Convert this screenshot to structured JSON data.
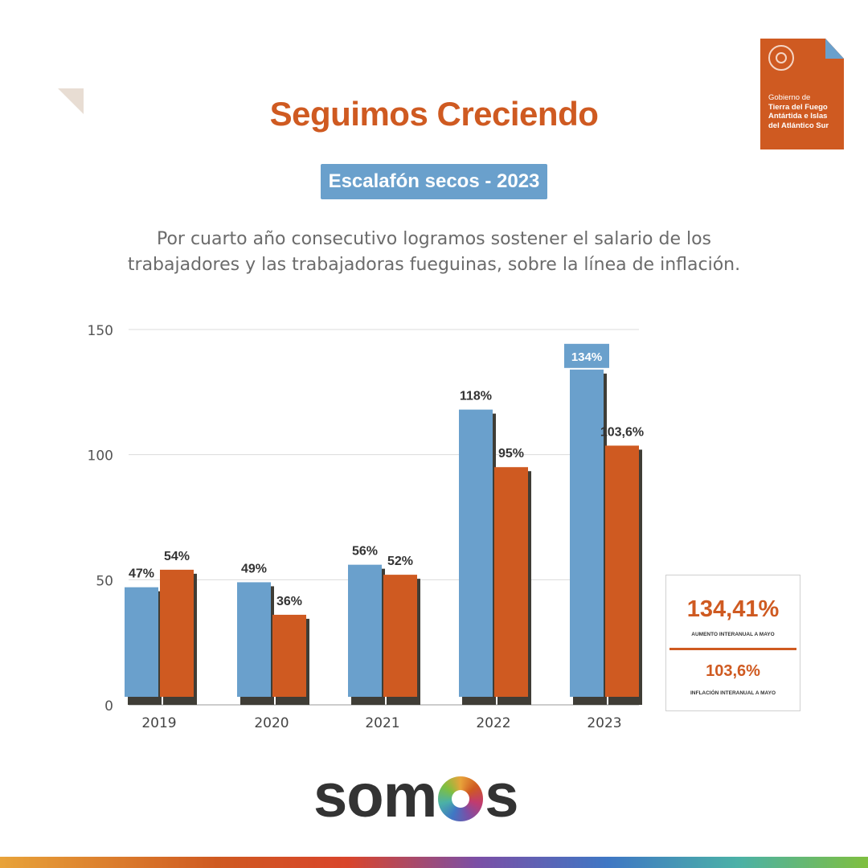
{
  "logo": {
    "line1": "Gobierno de",
    "line2": "Tierra del Fuego",
    "line3": "Antártida e Islas",
    "line4": "del Atlántico Sur"
  },
  "title": "Seguimos Creciendo",
  "subtitle": "Escalafón secos - 2023",
  "description": {
    "line1": "Por cuarto año consecutivo logramos sostener el salario de los",
    "line2": "trabajadores y las trabajadoras fueguinas, sobre la línea de inflación."
  },
  "chart_data": {
    "type": "bar",
    "categories": [
      "2019",
      "2020",
      "2021",
      "2022",
      "2023"
    ],
    "series": [
      {
        "color": "#6aa0cc",
        "values": [
          47,
          49,
          56,
          118,
          134
        ],
        "labels": [
          "47%",
          "49%",
          "56%",
          "118%",
          "134%"
        ]
      },
      {
        "color": "#cf5a21",
        "values": [
          54,
          36,
          52,
          95,
          103.6
        ],
        "labels": [
          "54%",
          "36%",
          "52%",
          "95%",
          "103,6%"
        ]
      }
    ],
    "ylim": [
      0,
      150
    ],
    "yticks": [
      "0",
      "50",
      "100",
      "150"
    ],
    "grid": true,
    "highlight": {
      "series": 0,
      "category": "2023",
      "label": "134%"
    }
  },
  "info_box": {
    "big_value": "134,41%",
    "caption1": "AUMENTO INTERANUAL A MAYO",
    "mid_value": "103,6%",
    "caption2": "INFLACIÓN INTERANUAL A MAYO"
  },
  "brand": {
    "part1": "som",
    "part2": "s"
  },
  "colors": {
    "orange": "#cf5a21",
    "blue": "#6aa0cc",
    "shadow": "#3f3d36",
    "text": "#333333"
  }
}
